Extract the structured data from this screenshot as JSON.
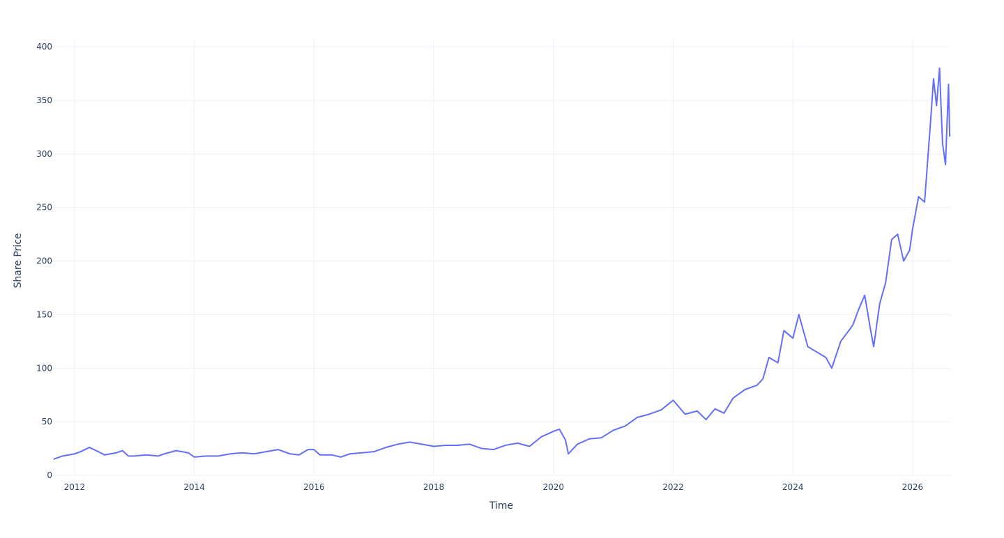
{
  "chart_data": {
    "type": "line",
    "x_label": "Time",
    "y_label": "Share Price",
    "color": "#636efa",
    "grid": true,
    "xlim": [
      2011.64,
      2026.63
    ],
    "xticks": [
      2012,
      2014,
      2016,
      2018,
      2020,
      2022,
      2024,
      2026
    ],
    "ylim": [
      0,
      400
    ],
    "yticks": [
      0,
      50,
      100,
      150,
      200,
      250,
      300,
      350,
      400
    ],
    "x": [
      2011.65,
      2011.8,
      2012.0,
      2012.1,
      2012.25,
      2012.4,
      2012.5,
      2012.7,
      2012.8,
      2012.9,
      2013.0,
      2013.2,
      2013.4,
      2013.5,
      2013.7,
      2013.9,
      2014.0,
      2014.2,
      2014.4,
      2014.6,
      2014.8,
      2015.0,
      2015.2,
      2015.4,
      2015.6,
      2015.75,
      2015.9,
      2016.0,
      2016.1,
      2016.3,
      2016.45,
      2016.6,
      2016.8,
      2017.0,
      2017.2,
      2017.4,
      2017.6,
      2017.8,
      2018.0,
      2018.2,
      2018.4,
      2018.6,
      2018.8,
      2019.0,
      2019.2,
      2019.4,
      2019.6,
      2019.8,
      2020.0,
      2020.1,
      2020.2,
      2020.25,
      2020.4,
      2020.6,
      2020.8,
      2021.0,
      2021.2,
      2021.4,
      2021.6,
      2021.8,
      2022.0,
      2022.2,
      2022.4,
      2022.55,
      2022.7,
      2022.85,
      2023.0,
      2023.2,
      2023.4,
      2023.5,
      2023.6,
      2023.75,
      2023.85,
      2024.0,
      2024.1,
      2024.25,
      2024.4,
      2024.55,
      2024.65,
      2024.8,
      2025.0,
      2025.1,
      2025.2,
      2025.3,
      2025.35,
      2025.45,
      2025.55,
      2025.65,
      2025.75,
      2025.85,
      2025.95,
      2026.0,
      2026.1,
      2026.2,
      2026.3,
      2026.35,
      2026.4,
      2026.45,
      2026.5,
      2026.55,
      2026.6,
      2026.62
    ],
    "values": [
      15,
      18,
      20,
      22,
      26,
      22,
      19,
      21,
      23,
      18,
      18,
      19,
      18,
      20,
      23,
      21,
      17,
      18,
      18,
      20,
      21,
      20,
      22,
      24,
      20,
      19,
      24,
      24,
      19,
      19,
      17,
      20,
      21,
      22,
      26,
      29,
      31,
      29,
      27,
      28,
      28,
      29,
      25,
      24,
      28,
      30,
      27,
      36,
      41,
      43,
      33,
      20,
      29,
      34,
      35,
      42,
      46,
      54,
      57,
      61,
      70,
      57,
      60,
      52,
      62,
      58,
      72,
      80,
      84,
      90,
      110,
      105,
      135,
      128,
      150,
      120,
      115,
      110,
      100,
      125,
      140,
      155,
      168,
      135,
      120,
      160,
      180,
      220,
      225,
      200,
      210,
      230,
      260,
      255,
      330,
      370,
      345,
      380,
      310,
      290,
      365,
      316
    ]
  }
}
